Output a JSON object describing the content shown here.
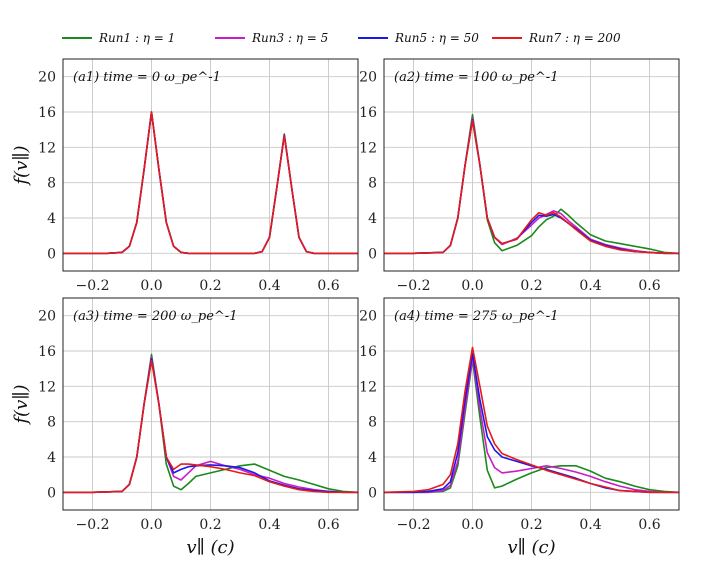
{
  "chart_data": [
    {
      "type": "line",
      "panel_label": "(a1) time = 0 ω_pe^-1",
      "xlabel": "",
      "ylabel": "f(v∥)",
      "xlim": [
        -0.3,
        0.7
      ],
      "ylim": [
        -2,
        22
      ],
      "xticks": [
        "−0.2",
        "0.0",
        "0.2",
        "0.4",
        "0.6"
      ],
      "yticks": [
        "0",
        "4",
        "8",
        "12",
        "16",
        "20"
      ],
      "x": [
        -0.3,
        -0.25,
        -0.2,
        -0.15,
        -0.1,
        -0.075,
        -0.05,
        -0.025,
        0.0,
        0.025,
        0.05,
        0.075,
        0.1,
        0.125,
        0.15,
        0.2,
        0.25,
        0.3,
        0.35,
        0.375,
        0.4,
        0.425,
        0.45,
        0.475,
        0.5,
        0.525,
        0.55,
        0.6,
        0.65,
        0.7
      ],
      "series": [
        {
          "name": "Run1 : η = 1",
          "color": "#1a8a1a",
          "values": [
            0,
            0,
            0,
            0,
            0.1,
            0.8,
            3.5,
            9.5,
            16,
            9.5,
            3.5,
            0.8,
            0.1,
            0,
            0,
            0,
            0,
            0,
            0,
            0.2,
            1.8,
            7.5,
            13.5,
            7.5,
            1.8,
            0.2,
            0,
            0,
            0,
            0
          ]
        },
        {
          "name": "Run3 : η = 5",
          "color": "#c81ec8",
          "values": [
            0,
            0,
            0,
            0,
            0.1,
            0.8,
            3.5,
            9.5,
            16,
            9.5,
            3.5,
            0.8,
            0.1,
            0,
            0,
            0,
            0,
            0,
            0,
            0.2,
            1.8,
            7.5,
            13.4,
            7.5,
            1.8,
            0.2,
            0,
            0,
            0,
            0
          ]
        },
        {
          "name": "Run5 : η = 50",
          "color": "#1a1ae6",
          "values": [
            0,
            0,
            0,
            0,
            0.1,
            0.8,
            3.5,
            9.5,
            16,
            9.5,
            3.5,
            0.8,
            0.1,
            0,
            0,
            0,
            0,
            0,
            0,
            0.2,
            1.8,
            7.5,
            13.4,
            7.5,
            1.8,
            0.2,
            0,
            0,
            0,
            0
          ]
        },
        {
          "name": "Run7 : η = 200",
          "color": "#e61a1a",
          "values": [
            0,
            0,
            0,
            0,
            0.1,
            0.8,
            3.5,
            9.5,
            16,
            9.5,
            3.5,
            0.8,
            0.1,
            0,
            0,
            0,
            0,
            0,
            0,
            0.2,
            1.8,
            7.5,
            13.3,
            7.5,
            1.8,
            0.2,
            0,
            0,
            0,
            0
          ]
        }
      ]
    },
    {
      "type": "line",
      "panel_label": "(a2) time = 100 ω_pe^-1",
      "xlabel": "",
      "ylabel": "",
      "xlim": [
        -0.3,
        0.7
      ],
      "ylim": [
        -2,
        22
      ],
      "xticks": [
        "−0.2",
        "0.0",
        "0.2",
        "0.4",
        "0.6"
      ],
      "yticks": [
        "0",
        "4",
        "8",
        "12",
        "16",
        "20"
      ],
      "x": [
        -0.3,
        -0.2,
        -0.1,
        -0.075,
        -0.05,
        -0.025,
        0.0,
        0.025,
        0.05,
        0.075,
        0.1,
        0.15,
        0.2,
        0.225,
        0.25,
        0.275,
        0.3,
        0.325,
        0.35,
        0.4,
        0.45,
        0.5,
        0.55,
        0.6,
        0.65,
        0.7
      ],
      "series": [
        {
          "name": "Run1 : η = 1",
          "color": "#1a8a1a",
          "values": [
            0,
            0,
            0.1,
            0.9,
            4,
            10,
            15.7,
            10,
            3.8,
            1.2,
            0.3,
            0.9,
            2,
            3,
            3.8,
            4.2,
            5,
            4.3,
            3.5,
            2.1,
            1.4,
            1.1,
            0.8,
            0.5,
            0.1,
            0
          ]
        },
        {
          "name": "Run3 : η = 5",
          "color": "#c81ec8",
          "values": [
            0,
            0,
            0.1,
            0.9,
            4,
            10,
            15.3,
            10,
            4,
            1.8,
            1,
            1.7,
            3.2,
            4,
            4.4,
            4.8,
            4.5,
            3.7,
            3,
            1.6,
            1,
            0.6,
            0.3,
            0.1,
            0,
            0
          ]
        },
        {
          "name": "Run5 : η = 50",
          "color": "#1a1ae6",
          "values": [
            0,
            0,
            0.1,
            0.9,
            4,
            10,
            15.1,
            10,
            4,
            1.8,
            1.1,
            1.6,
            3.5,
            4.3,
            4.2,
            4.4,
            4,
            3.4,
            2.8,
            1.5,
            0.9,
            0.5,
            0.2,
            0.1,
            0,
            0
          ]
        },
        {
          "name": "Run7 : η = 200",
          "color": "#e61a1a",
          "values": [
            0,
            0,
            0.1,
            0.9,
            4,
            10,
            15,
            10,
            4,
            1.8,
            1.1,
            1.6,
            3.8,
            4.6,
            4.3,
            4.6,
            4.1,
            3.4,
            2.7,
            1.4,
            0.8,
            0.4,
            0.2,
            0.1,
            0,
            0
          ]
        }
      ]
    },
    {
      "type": "line",
      "panel_label": "(a3) time = 200 ω_pe^-1",
      "xlabel": "v∥ (c)",
      "ylabel": "f(v∥)",
      "xlim": [
        -0.3,
        0.7
      ],
      "ylim": [
        -2,
        22
      ],
      "xticks": [
        "−0.2",
        "0.0",
        "0.2",
        "0.4",
        "0.6"
      ],
      "yticks": [
        "0",
        "4",
        "8",
        "12",
        "16",
        "20"
      ],
      "x": [
        -0.3,
        -0.2,
        -0.1,
        -0.075,
        -0.05,
        -0.025,
        0.0,
        0.025,
        0.05,
        0.075,
        0.1,
        0.125,
        0.15,
        0.2,
        0.25,
        0.3,
        0.35,
        0.4,
        0.45,
        0.5,
        0.55,
        0.6,
        0.65,
        0.7
      ],
      "series": [
        {
          "name": "Run1 : η = 1",
          "color": "#1a8a1a",
          "values": [
            0,
            0,
            0.1,
            0.9,
            4,
            10,
            15.6,
            10,
            3.2,
            0.7,
            0.3,
            1,
            1.8,
            2.2,
            2.6,
            3,
            3.2,
            2.5,
            1.8,
            1.4,
            0.9,
            0.4,
            0.1,
            0
          ]
        },
        {
          "name": "Run3 : η = 5",
          "color": "#c81ec8",
          "values": [
            0,
            0,
            0.1,
            0.9,
            4,
            10,
            15.3,
            10,
            4,
            1.8,
            1.4,
            2.2,
            3,
            3.5,
            3,
            2.6,
            2,
            1.6,
            1,
            0.6,
            0.3,
            0.1,
            0,
            0
          ]
        },
        {
          "name": "Run5 : η = 50",
          "color": "#1a1ae6",
          "values": [
            0,
            0,
            0.1,
            0.9,
            4,
            10,
            15.1,
            10,
            4,
            2.2,
            2.6,
            2.9,
            3,
            3.1,
            3,
            2.8,
            2.2,
            1.3,
            0.8,
            0.4,
            0.2,
            0.1,
            0,
            0
          ]
        },
        {
          "name": "Run7 : η = 200",
          "color": "#e61a1a",
          "values": [
            0,
            0,
            0.1,
            0.9,
            4,
            10,
            14.9,
            10,
            4,
            2.6,
            3.2,
            3.2,
            3.1,
            2.9,
            2.6,
            2.2,
            1.9,
            1.2,
            0.7,
            0.3,
            0.1,
            0,
            0,
            0
          ]
        }
      ]
    },
    {
      "type": "line",
      "panel_label": "(a4) time = 275 ω_pe^-1",
      "xlabel": "v∥ (c)",
      "ylabel": "",
      "xlim": [
        -0.3,
        0.7
      ],
      "ylim": [
        -2,
        22
      ],
      "xticks": [
        "−0.2",
        "0.0",
        "0.2",
        "0.4",
        "0.6"
      ],
      "yticks": [
        "0",
        "4",
        "8",
        "12",
        "16",
        "20"
      ],
      "x": [
        -0.3,
        -0.2,
        -0.15,
        -0.1,
        -0.075,
        -0.05,
        -0.025,
        0.0,
        0.025,
        0.05,
        0.075,
        0.1,
        0.15,
        0.2,
        0.25,
        0.3,
        0.35,
        0.4,
        0.45,
        0.5,
        0.55,
        0.6,
        0.65,
        0.7
      ],
      "series": [
        {
          "name": "Run1 : η = 1",
          "color": "#1a8a1a",
          "values": [
            0,
            0,
            0,
            0.1,
            0.5,
            3,
            9,
            15,
            8.5,
            2.5,
            0.5,
            0.7,
            1.5,
            2.2,
            2.8,
            3,
            3,
            2.4,
            1.6,
            1.2,
            0.7,
            0.3,
            0.1,
            0
          ]
        },
        {
          "name": "Run3 : η = 5",
          "color": "#c81ec8",
          "values": [
            0,
            0,
            0,
            0.2,
            0.8,
            3.5,
            9.5,
            15.3,
            9.5,
            4.5,
            2.8,
            2.2,
            2.4,
            2.7,
            3,
            2.7,
            2.3,
            1.8,
            1.2,
            0.7,
            0.3,
            0.1,
            0,
            0
          ]
        },
        {
          "name": "Run5 : η = 50",
          "color": "#1a1ae6",
          "values": [
            0,
            0,
            0.1,
            0.4,
            1.2,
            4.5,
            10.5,
            15.7,
            10.5,
            6.3,
            4.8,
            4,
            3.5,
            3,
            2.6,
            2.1,
            1.6,
            1,
            0.5,
            0.2,
            0.1,
            0,
            0,
            0
          ]
        },
        {
          "name": "Run7 : η = 200",
          "color": "#e61a1a",
          "values": [
            0,
            0.1,
            0.3,
            0.9,
            2,
            5.5,
            11.5,
            16.4,
            12,
            7.5,
            5.5,
            4.4,
            3.7,
            3.1,
            2.5,
            2,
            1.5,
            1,
            0.6,
            0.2,
            0.1,
            0,
            0,
            0
          ]
        }
      ]
    }
  ],
  "legend": [
    {
      "label": "Run1 : η = 1",
      "color": "#1a8a1a"
    },
    {
      "label": "Run3 : η = 5",
      "color": "#c81ec8"
    },
    {
      "label": "Run5 : η = 50",
      "color": "#1a1ae6"
    },
    {
      "label": "Run7 : η = 200",
      "color": "#e61a1a"
    }
  ]
}
